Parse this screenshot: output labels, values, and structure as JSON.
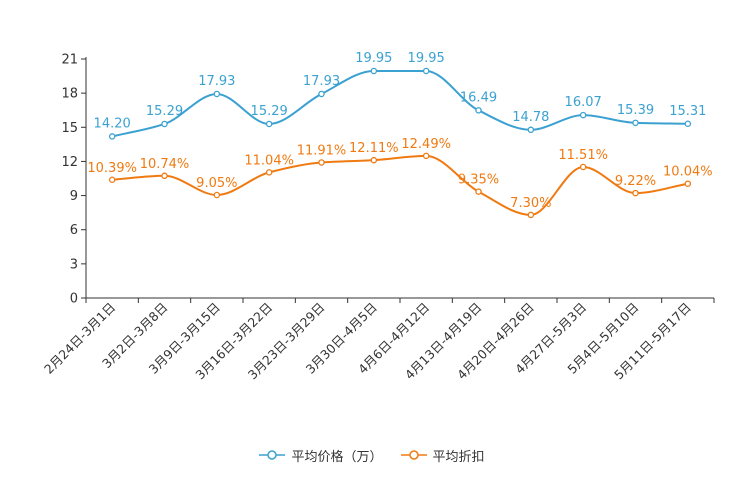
{
  "chart_data": {
    "type": "line",
    "categories": [
      "2月24日-3月1日",
      "3月2日-3月8日",
      "3月9日-3月15日",
      "3月16日-3月22日",
      "3月23日-3月29日",
      "3月30日-4月5日",
      "4月6日-4月12日",
      "4月13日-4月19日",
      "4月20日-4月26日",
      "4月27日-5月3日",
      "5月4日-5月10日",
      "5月11日-5月17日"
    ],
    "series": [
      {
        "name": "平均价格（万）",
        "color": "#3ba1d1",
        "values": [
          14.2,
          15.29,
          17.93,
          15.29,
          17.93,
          19.95,
          19.95,
          16.49,
          14.78,
          16.07,
          15.39,
          15.31
        ],
        "labels": [
          "14.20",
          "15.29",
          "17.93",
          "15.29",
          "17.93",
          "19.95",
          "19.95",
          "16.49",
          "14.78",
          "16.07",
          "15.39",
          "15.31"
        ]
      },
      {
        "name": "平均折扣",
        "color": "#f07a12",
        "values": [
          10.39,
          10.74,
          9.05,
          11.04,
          11.91,
          12.11,
          12.49,
          9.35,
          7.3,
          11.51,
          9.22,
          10.04
        ],
        "labels": [
          "10.39%",
          "10.74%",
          "9.05%",
          "11.04%",
          "11.91%",
          "12.11%",
          "12.49%",
          "9.35%",
          "7.30%",
          "11.51%",
          "9.22%",
          "10.04%"
        ]
      }
    ],
    "yticks": [
      "0",
      "3",
      "6",
      "9",
      "12",
      "15",
      "18",
      "21"
    ],
    "ylim": [
      0,
      21
    ],
    "legend_position": "bottom-center"
  }
}
